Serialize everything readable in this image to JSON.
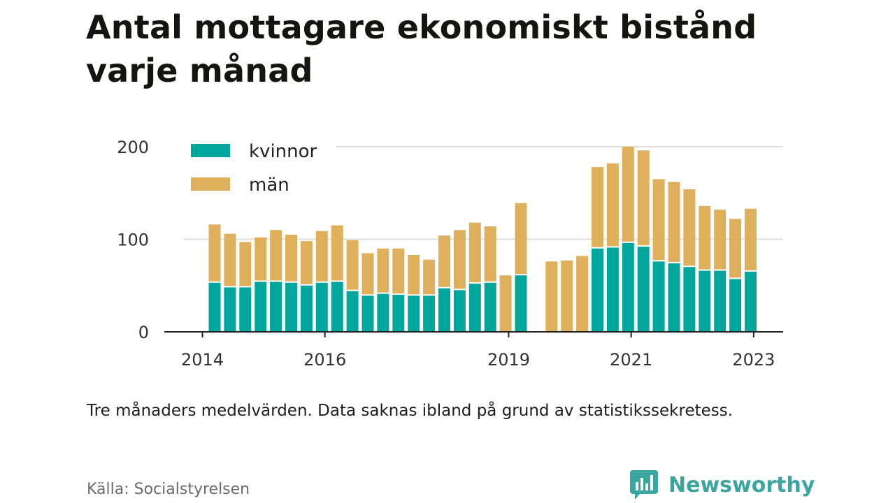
{
  "title": "Antal mottagare ekonomiskt bistånd varje månad",
  "note": "Tre månaders medelvärden. Data saknas ibland på grund av statistikssekretess.",
  "source": "Källa: Socialstyrelsen",
  "brand": {
    "name": "Newsworthy",
    "icon": "newsworthy-logo-icon",
    "color": "#3aa6a0"
  },
  "chart_data": {
    "type": "bar",
    "stacked": true,
    "title": "Antal mottagare ekonomiskt bistånd varje månad",
    "xlabel": "",
    "ylabel": "",
    "ylim": [
      0,
      200
    ],
    "yticks": [
      0,
      100,
      200
    ],
    "xticks": [
      {
        "label": "2014",
        "index": -0.8
      },
      {
        "label": "2016",
        "index": 7.2
      },
      {
        "label": "2019",
        "index": 19.2
      },
      {
        "label": "2021",
        "index": 27.2
      },
      {
        "label": "2023",
        "index": 35.2
      }
    ],
    "grid": true,
    "legend_position": "top-left",
    "x": [
      "2014-Q3",
      "2014-Q4",
      "2015-Q1",
      "2015-Q2",
      "2015-Q3",
      "2015-Q4",
      "2016-Q1",
      "2016-Q2",
      "2016-Q3",
      "2016-Q4",
      "2017-Q1",
      "2017-Q2",
      "2017-Q3",
      "2017-Q4",
      "2018-Q1",
      "2018-Q2",
      "2018-Q3",
      "2018-Q4",
      "2019-Q1",
      "2019-Q2",
      "2019-Q3",
      "2019-Q4",
      "2020-Q1",
      "2020-Q2",
      "2020-Q3",
      "2020-Q4",
      "2021-Q1",
      "2021-Q2",
      "2021-Q3",
      "2021-Q4",
      "2022-Q1",
      "2022-Q2",
      "2022-Q3",
      "2022-Q4",
      "2023-Q1",
      "2023-Q2",
      "2023-Q3"
    ],
    "series": [
      {
        "name": "kvinnor",
        "color": "#00a69c",
        "values": [
          53,
          48,
          48,
          54,
          54,
          53,
          50,
          53,
          54,
          44,
          39,
          41,
          40,
          39,
          39,
          47,
          45,
          52,
          53,
          0,
          61,
          null,
          0,
          0,
          0,
          90,
          91,
          96,
          92,
          76,
          74,
          70,
          66,
          66,
          57,
          65,
          null
        ]
      },
      {
        "name": "män",
        "color": "#dfb05c",
        "values": [
          63,
          58,
          49,
          48,
          56,
          52,
          48,
          56,
          61,
          55,
          46,
          49,
          50,
          44,
          39,
          57,
          65,
          66,
          61,
          61,
          78,
          null,
          76,
          77,
          82,
          88,
          91,
          104,
          104,
          89,
          88,
          84,
          70,
          66,
          65,
          68,
          null
        ]
      }
    ]
  }
}
